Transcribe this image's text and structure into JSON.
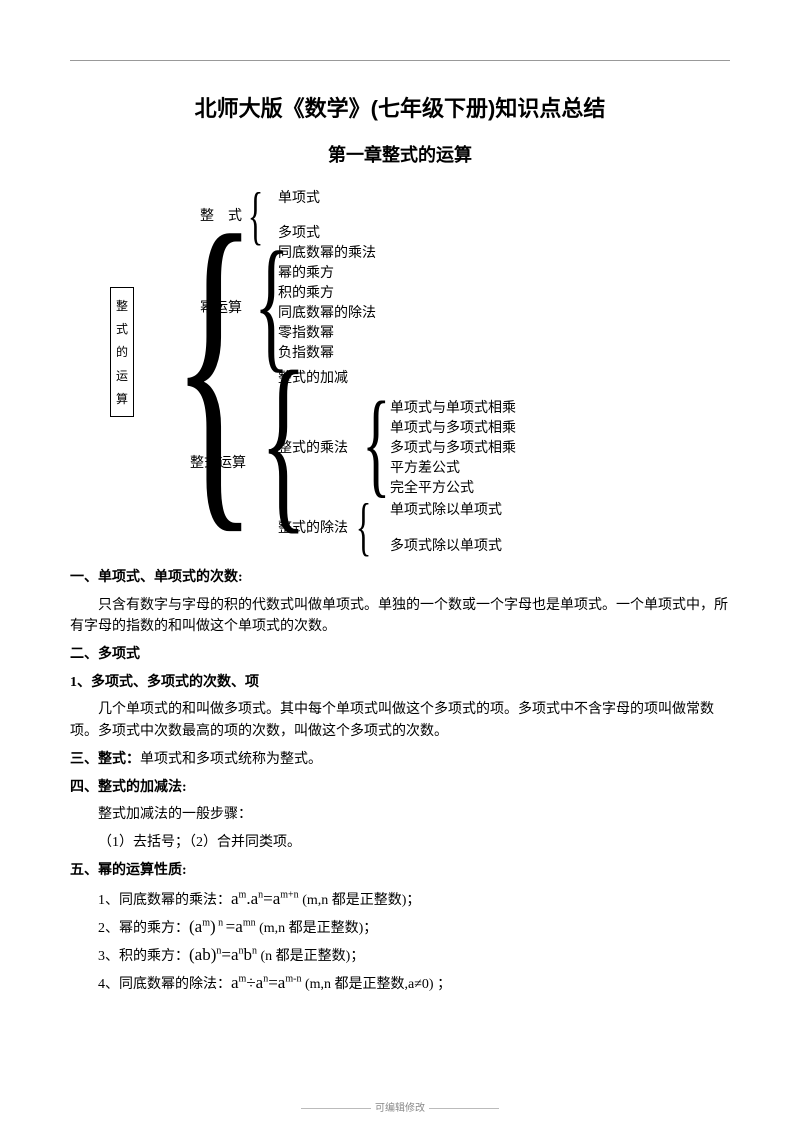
{
  "header": {
    "title": "北师大版《数学》(七年级下册)知识点总结",
    "subtitle": "第一章整式的运算"
  },
  "tree": {
    "root": [
      "整",
      "式",
      "的",
      "运",
      "算"
    ],
    "level1": {
      "n1": "整　式",
      "n2": "幂运算",
      "n3": "整式运算"
    },
    "level2": {
      "a1": "单项式",
      "a2": "多项式",
      "b1": "同底数幂的乘法",
      "b2": "幂的乘方",
      "b3": "积的乘方",
      "b4": "同底数幂的除法",
      "b5": "零指数幂",
      "b6": "负指数幂",
      "c1": "整式的加减",
      "c2": "整式的乘法",
      "c3": "整式的除法"
    },
    "level3": {
      "d1": "单项式与单项式相乘",
      "d2": "单项式与多项式相乘",
      "d3": "多项式与多项式相乘",
      "d4": "平方差公式",
      "d5": "完全平方公式",
      "e1": "单项式除以单项式",
      "e2": "多项式除以单项式"
    }
  },
  "sections": {
    "s1_title": "一、单项式、单项式的次数:",
    "s1_body": "只含有数字与字母的积的代数式叫做单项式。单独的一个数或一个字母也是单项式。一个单项式中，所有字母的指数的和叫做这个单项式的次数。",
    "s2_title": "二、多项式",
    "s2b_title": "1、多项式、多项式的次数、项",
    "s2_body": "几个单项式的和叫做多项式。其中每个单项式叫做这个多项式的项。多项式中不含字母的项叫做常数项。多项式中次数最高的项的次数，叫做这个多项式的次数。",
    "s3_title": "三、整式：",
    "s3_body": "单项式和多项式统称为整式。",
    "s4_title": "四、整式的加减法:",
    "s4_l1": "整式加减法的一般步骤：",
    "s4_l2": "（1）去括号；（2）合并同类项。",
    "s5_title": "五、幂的运算性质:",
    "f1_pre": "1、同底数幂的乘法：",
    "f1_post": " (m,n 都是正整数)；",
    "f2_pre": "2、幂的乘方：",
    "f2_post": " (m,n 都是正整数)；",
    "f3_pre": "3、积的乘方：",
    "f3_post": " (n 都是正整数)；",
    "f4_pre": "4、同底数幂的除法：",
    "f4_post": " (m,n 都是正整数,a≠0) ；"
  },
  "formulas": {
    "f1": "a<sup>m</sup>.a<sup>n</sup>=a<sup>m+n</sup>",
    "f2": "(a<sup>m</sup>)<sup> n </sup>=a<sup>mn</sup>",
    "f3": "(ab)<sup>n</sup>=a<sup>n</sup>b<sup>n</sup>",
    "f4": "a<sup>m</sup>÷a<sup>n</sup>=a<sup>m-n</sup>"
  },
  "footer": "可编辑修改"
}
